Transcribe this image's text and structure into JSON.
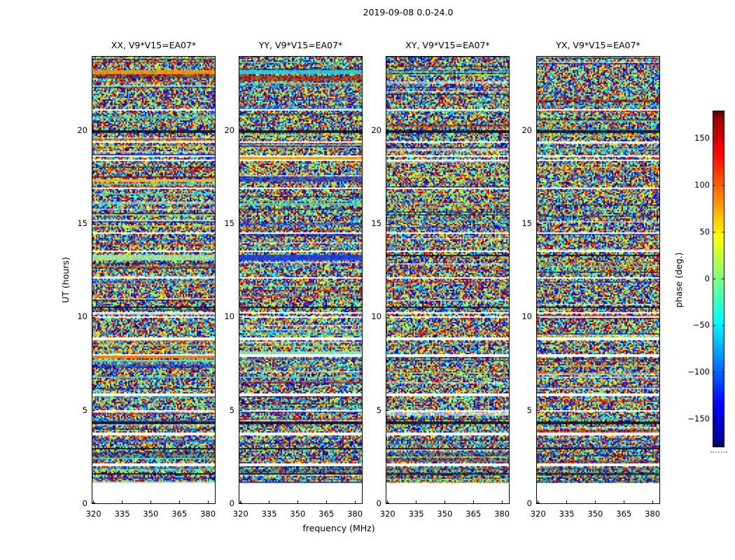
{
  "chart_data": {
    "type": "heatmap",
    "title": "2019-09-08 0.0-24.0",
    "xlabel": "frequency (MHz)",
    "ylabel": "UT (hours)",
    "x_ticks": [
      320,
      335,
      350,
      365,
      380
    ],
    "y_ticks": [
      0,
      5,
      10,
      15,
      20
    ],
    "x_range": [
      319,
      384
    ],
    "y_range": [
      0,
      24
    ],
    "value_range": [
      -180,
      180
    ],
    "colormap": "jet",
    "colorbar": {
      "label": "phase (deg.)",
      "ticks": [
        150,
        100,
        50,
        0,
        -50,
        -100,
        -150
      ]
    },
    "data_start_hour": 1.15,
    "flagged_times": [
      [
        21.1,
        0.12
      ],
      [
        19.4,
        0.12
      ],
      [
        18.62,
        0.1
      ],
      [
        18.42,
        0.1
      ],
      [
        16.9,
        0.08
      ],
      [
        14.5,
        0.12
      ],
      [
        13.55,
        0.08
      ],
      [
        12.1,
        0.07
      ],
      [
        10.25,
        0.12
      ],
      [
        10.02,
        0.1
      ],
      [
        8.85,
        0.1
      ],
      [
        7.95,
        0.08
      ],
      [
        5.85,
        0.12
      ],
      [
        4.97,
        0.1
      ],
      [
        3.75,
        0.08
      ],
      [
        2.1,
        0.08
      ]
    ],
    "dark_times": [
      [
        22.05,
        0.06
      ],
      [
        19.95,
        0.08
      ],
      [
        17.55,
        0.06
      ],
      [
        13.3,
        0.06
      ],
      [
        10.55,
        0.08
      ],
      [
        8.8,
        0.07
      ],
      [
        6.3,
        0.05
      ],
      [
        4.35,
        0.08
      ],
      [
        2.95,
        0.07
      ],
      [
        1.6,
        0.06
      ]
    ],
    "panels": [
      {
        "label": "XX, V9*V15=EA07*",
        "seed": 7,
        "stripes": [
          [
            23.15,
            0.2,
            "#ff9500"
          ],
          [
            22.4,
            0.09,
            "#a8e8f0"
          ],
          [
            18.72,
            0.12,
            "#1535cc"
          ],
          [
            17.5,
            0.07,
            "#990000"
          ],
          [
            17.32,
            0.16,
            "#ffc020"
          ],
          [
            17.14,
            0.09,
            "#40e0c0"
          ],
          [
            16.6,
            0.09,
            "#40e0d0"
          ],
          [
            16.12,
            0.08,
            "#50e8d8"
          ],
          [
            15.5,
            0.1,
            "#90e890"
          ],
          [
            15.18,
            0.1,
            "#d0f5d0"
          ],
          [
            13.2,
            0.26,
            "#a5f0a0"
          ],
          [
            7.85,
            0.15,
            "#ff8000"
          ],
          [
            7.68,
            0.09,
            "#7ce8c0"
          ],
          [
            6.8,
            0.07,
            "#38d8e8"
          ],
          [
            2.45,
            0.1,
            "#55e0b0"
          ],
          [
            1.12,
            0.16,
            "#b5f2b0"
          ]
        ]
      },
      {
        "label": "YY, V9*V15=EA07*",
        "seed": 13,
        "stripes": [
          [
            23.15,
            0.2,
            "#25d5e5"
          ],
          [
            22.82,
            0.3,
            "#aa1500",
            "b"
          ],
          [
            22.55,
            0.09,
            "#55e0a0"
          ],
          [
            18.5,
            0.15,
            "#ffaa00"
          ],
          [
            17.4,
            0.32,
            "#1030cc",
            "b"
          ],
          [
            16.12,
            0.08,
            "#38d8e8"
          ],
          [
            13.2,
            0.28,
            "#1838e0"
          ],
          [
            8.1,
            0.13,
            "#90eec0"
          ],
          [
            6.8,
            0.07,
            "#38d8e8"
          ],
          [
            1.12,
            0.18,
            "#1535cc"
          ]
        ]
      },
      {
        "label": "XY, V9*V15=EA07*",
        "seed": 21,
        "stripes": []
      },
      {
        "label": "YX, V9*V15=EA07*",
        "seed": 29,
        "stripes": []
      }
    ]
  }
}
